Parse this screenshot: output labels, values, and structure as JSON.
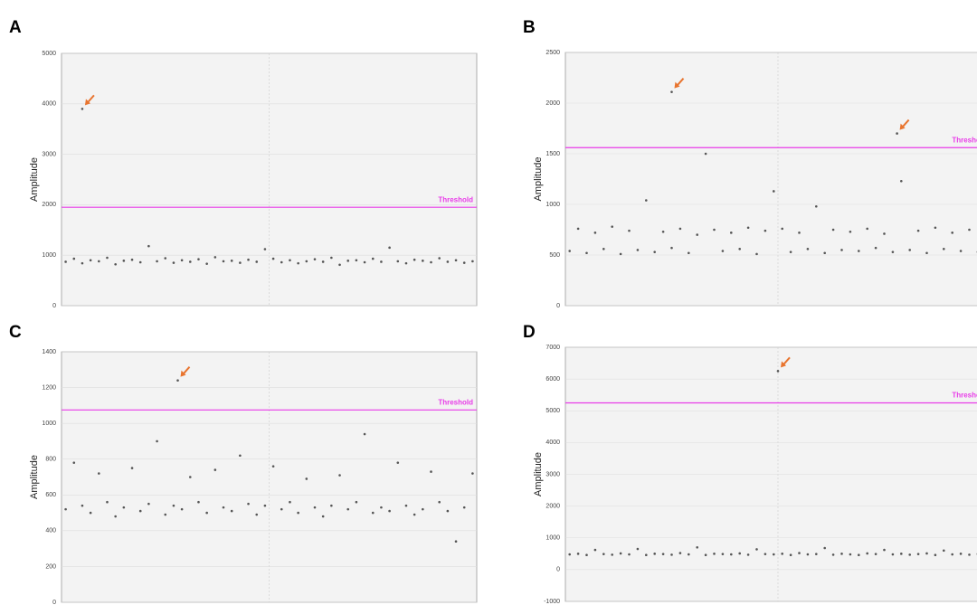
{
  "chart_data": [
    {
      "type": "scatter",
      "panel_label": "A",
      "y_label": "Amplitude",
      "color": "#555555",
      "xlim": [
        0,
        100
      ],
      "ylim": [
        0,
        5000
      ],
      "yticks": [
        0,
        1000,
        2000,
        3000,
        4000,
        5000
      ],
      "grid": true,
      "x": [
        1,
        3,
        5,
        7,
        9,
        11,
        13,
        15,
        17,
        19,
        21,
        23,
        25,
        27,
        29,
        31,
        33,
        35,
        37,
        39,
        41,
        43,
        45,
        47,
        49,
        51,
        53,
        55,
        57,
        59,
        61,
        63,
        65,
        67,
        69,
        71,
        73,
        75,
        77,
        79,
        81,
        83,
        85,
        87,
        89,
        91,
        93,
        95,
        97,
        99
      ],
      "values": [
        870,
        930,
        840,
        900,
        880,
        950,
        820,
        890,
        910,
        860,
        1180,
        880,
        940,
        850,
        900,
        870,
        920,
        830,
        960,
        880,
        890,
        850,
        910,
        870,
        1120,
        930,
        860,
        900,
        840,
        880,
        920,
        870,
        950,
        810,
        890,
        900,
        860,
        930,
        870,
        1150,
        880,
        840,
        910,
        890,
        860,
        940,
        870,
        900,
        850,
        880
      ],
      "threshold": {
        "value": 1950,
        "label": "Threshold",
        "color": "#e83be8"
      },
      "arrow_color": "#e8742e",
      "arrows": [
        {
          "x": 5,
          "y": 3900
        }
      ]
    },
    {
      "type": "scatter",
      "panel_label": "B",
      "y_label": "Amplitude",
      "color": "#555555",
      "xlim": [
        0,
        100
      ],
      "ylim": [
        0,
        2500
      ],
      "yticks": [
        0,
        500,
        1000,
        1500,
        2000,
        2500
      ],
      "grid": true,
      "x": [
        1,
        3,
        5,
        7,
        9,
        11,
        13,
        15,
        17,
        19,
        21,
        23,
        25,
        27,
        29,
        31,
        33,
        35,
        37,
        39,
        41,
        43,
        45,
        47,
        49,
        51,
        53,
        55,
        57,
        59,
        61,
        63,
        65,
        67,
        69,
        71,
        73,
        75,
        77,
        79,
        81,
        83,
        85,
        87,
        89,
        91,
        93,
        95,
        97,
        99
      ],
      "values": [
        540,
        760,
        520,
        720,
        560,
        780,
        510,
        740,
        550,
        1040,
        530,
        730,
        570,
        760,
        520,
        700,
        1500,
        750,
        540,
        720,
        560,
        770,
        510,
        740,
        1130,
        760,
        530,
        720,
        560,
        980,
        520,
        750,
        550,
        730,
        540,
        760,
        570,
        710,
        530,
        1230,
        550,
        740,
        520,
        770,
        560,
        720,
        540,
        750,
        530,
        760
      ],
      "threshold": {
        "value": 1560,
        "label": "Threshold",
        "color": "#e83be8"
      },
      "arrow_color": "#e8742e",
      "arrows": [
        {
          "x": 25,
          "y": 2110
        },
        {
          "x": 78,
          "y": 1700
        }
      ]
    },
    {
      "type": "scatter",
      "panel_label": "C",
      "y_label": "Amplitude",
      "color": "#555555",
      "xlim": [
        0,
        100
      ],
      "ylim": [
        0,
        1400
      ],
      "yticks": [
        0,
        200,
        400,
        600,
        800,
        1000,
        1200,
        1400
      ],
      "grid": true,
      "x": [
        1,
        3,
        5,
        7,
        9,
        11,
        13,
        15,
        17,
        19,
        21,
        23,
        25,
        27,
        29,
        31,
        33,
        35,
        37,
        39,
        41,
        43,
        45,
        47,
        49,
        51,
        53,
        55,
        57,
        59,
        61,
        63,
        65,
        67,
        69,
        71,
        73,
        75,
        77,
        79,
        81,
        83,
        85,
        87,
        89,
        91,
        93,
        95,
        97,
        99
      ],
      "values": [
        520,
        780,
        540,
        500,
        720,
        560,
        480,
        530,
        750,
        510,
        550,
        900,
        490,
        540,
        520,
        700,
        560,
        500,
        740,
        530,
        510,
        820,
        550,
        490,
        540,
        760,
        520,
        560,
        500,
        690,
        530,
        480,
        540,
        710,
        520,
        560,
        940,
        500,
        530,
        510,
        780,
        540,
        490,
        520,
        730,
        560,
        510,
        340,
        530,
        720
      ],
      "threshold": {
        "value": 1075,
        "label": "Threshold",
        "color": "#e83be8"
      },
      "arrow_color": "#e8742e",
      "arrows": [
        {
          "x": 28,
          "y": 1240
        }
      ]
    },
    {
      "type": "scatter",
      "panel_label": "D",
      "y_label": "Amplitude",
      "color": "#555555",
      "xlim": [
        0,
        100
      ],
      "ylim": [
        -1000,
        7000
      ],
      "yticks": [
        -1000,
        0,
        1000,
        2000,
        3000,
        4000,
        5000,
        6000,
        7000
      ],
      "grid": true,
      "x": [
        1,
        3,
        5,
        7,
        9,
        11,
        13,
        15,
        17,
        19,
        21,
        23,
        25,
        27,
        29,
        31,
        33,
        35,
        37,
        39,
        41,
        43,
        45,
        47,
        49,
        51,
        53,
        55,
        57,
        59,
        61,
        63,
        65,
        67,
        69,
        71,
        73,
        75,
        77,
        79,
        81,
        83,
        85,
        87,
        89,
        91,
        93,
        95,
        97,
        99
      ],
      "values": [
        480,
        500,
        460,
        620,
        490,
        470,
        510,
        480,
        650,
        460,
        500,
        490,
        470,
        520,
        480,
        700,
        460,
        500,
        490,
        480,
        510,
        470,
        640,
        490,
        480,
        500,
        460,
        520,
        480,
        490,
        680,
        470,
        500,
        480,
        460,
        510,
        490,
        620,
        480,
        500,
        470,
        490,
        510,
        460,
        600,
        480,
        500,
        470,
        490,
        480
      ],
      "threshold": {
        "value": 5250,
        "label": "Threshold",
        "color": "#e83be8"
      },
      "arrow_color": "#e8742e",
      "arrows": [
        {
          "x": 50,
          "y": 6250
        }
      ]
    }
  ]
}
